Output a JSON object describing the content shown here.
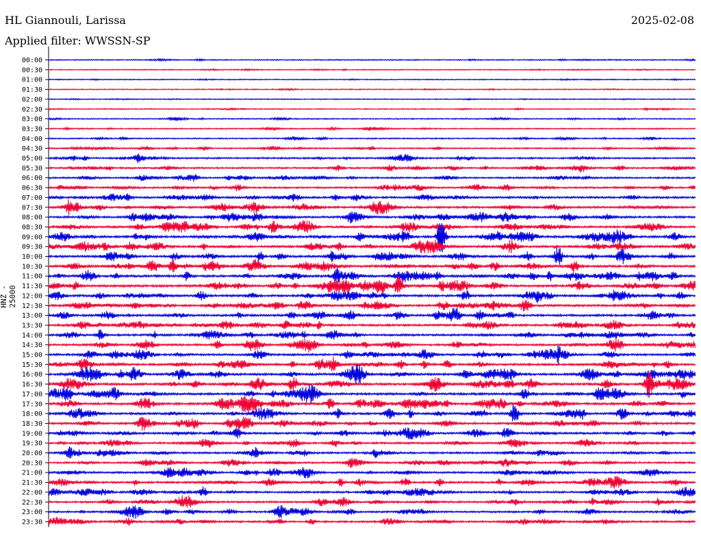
{
  "header": {
    "station": "HL Giannouli, Larissa",
    "filter": "Applied filter: WWSSN-SP",
    "date": "2025-02-08"
  },
  "chart_data": {
    "type": "line",
    "ylabel": "HNZ - 25000",
    "rows": [
      "00:00",
      "00:30",
      "01:00",
      "01:30",
      "02:00",
      "02:30",
      "03:00",
      "03:30",
      "04:00",
      "04:30",
      "05:00",
      "05:30",
      "06:00",
      "06:30",
      "07:00",
      "07:30",
      "08:00",
      "08:30",
      "09:00",
      "09:30",
      "10:00",
      "10:30",
      "11:00",
      "11:30",
      "12:00",
      "12:30",
      "13:00",
      "13:30",
      "14:00",
      "14:30",
      "15:00",
      "15:30",
      "16:00",
      "16:30",
      "17:00",
      "17:30",
      "18:00",
      "18:30",
      "19:00",
      "19:30",
      "20:00",
      "20:30",
      "21:00",
      "21:30",
      "22:00",
      "22:30",
      "23:00",
      "23:30"
    ],
    "series_colors": [
      "#0000dd",
      "#ee0033"
    ],
    "activity": [
      0.15,
      0.12,
      0.08,
      0.1,
      0.1,
      0.15,
      0.2,
      0.25,
      0.3,
      0.4,
      0.55,
      0.6,
      0.6,
      0.65,
      0.8,
      0.85,
      0.85,
      0.9,
      0.95,
      0.95,
      0.95,
      1.0,
      1.0,
      1.0,
      0.95,
      0.95,
      0.95,
      0.9,
      0.85,
      0.85,
      0.9,
      0.9,
      1.0,
      1.0,
      1.0,
      1.0,
      0.95,
      0.9,
      0.85,
      0.8,
      0.75,
      0.7,
      0.75,
      0.8,
      0.8,
      0.75,
      0.7,
      0.75
    ]
  }
}
